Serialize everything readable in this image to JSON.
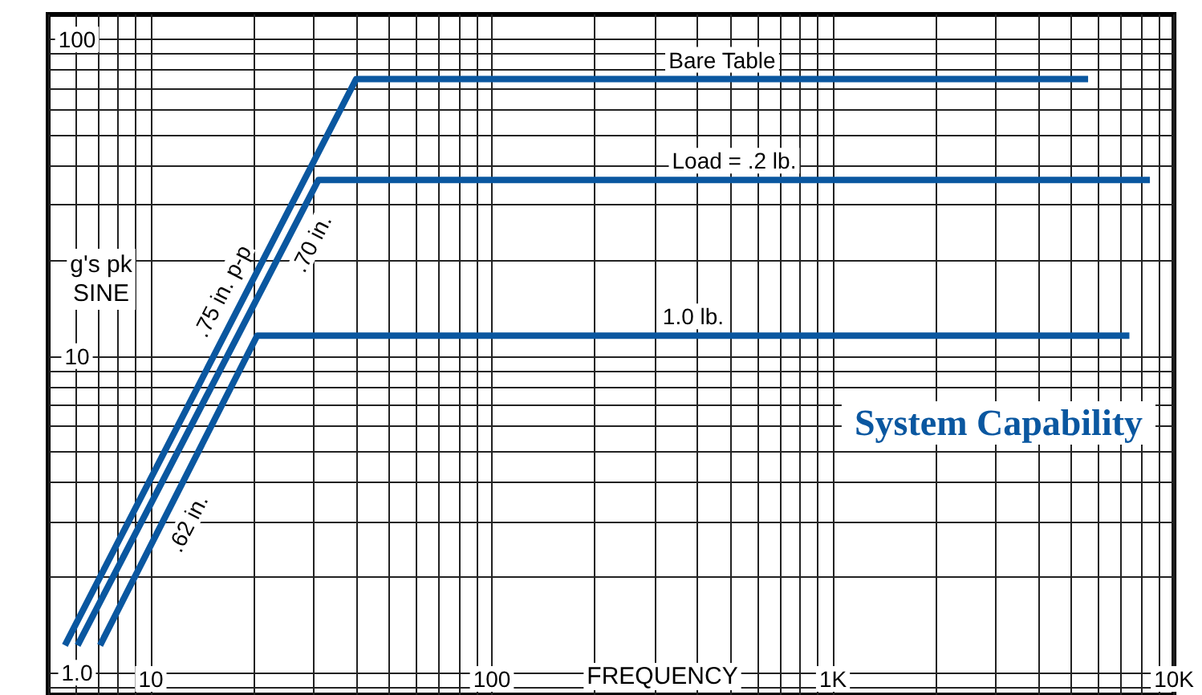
{
  "chart_data": {
    "type": "line",
    "title": "System Capability",
    "xlabel": "FREQUENCY",
    "ylabel": "g's pk\nSINE",
    "log": "xy",
    "grid": true,
    "legend": false,
    "marker": "none",
    "line_style": "solid",
    "xlim": [
      5,
      10000
    ],
    "xticks": [
      10,
      100,
      {
        "value": 1000,
        "label": "1K"
      },
      {
        "value": 10000,
        "label": "10K"
      }
    ],
    "ylim": [
      0.85,
      120
    ],
    "yticks": [
      {
        "value": 1,
        "label": "1.0"
      },
      10,
      100
    ],
    "series": [
      {
        "name": "Bare Table",
        "color": "#0a57a0",
        "x": [
          5.6,
          40,
          5600
        ],
        "values": [
          1.22,
          75,
          75
        ]
      },
      {
        "name": "Load = .2 lb.",
        "color": "#0a57a0",
        "x": [
          6.1,
          31,
          8500
        ],
        "values": [
          1.22,
          36,
          36
        ]
      },
      {
        "name": "1.0 lb.",
        "color": "#0a57a0",
        "x": [
          7.1,
          20.5,
          7400
        ],
        "values": [
          1.22,
          11.6,
          11.6
        ]
      }
    ],
    "annotations": [
      {
        "text": ".75 in. p-p",
        "x": 18.5,
        "y": 14.9
      },
      {
        "text": ".70 in.",
        "x": 25.8,
        "y": 24.5
      },
      {
        "text": ".62 in.",
        "x": 11.2,
        "y": 3.2
      }
    ]
  }
}
